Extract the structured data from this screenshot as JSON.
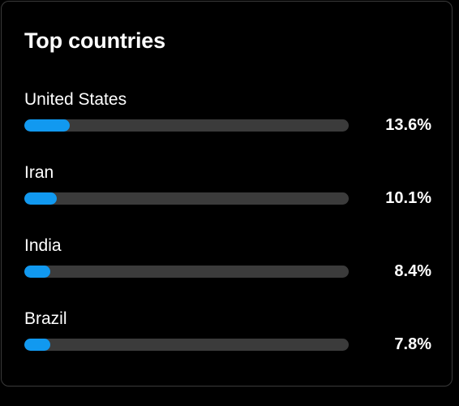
{
  "card": {
    "title": "Top countries"
  },
  "countries": [
    {
      "name": "United States",
      "percent_label": "13.6%",
      "bar_fill_fraction": 0.14
    },
    {
      "name": "Iran",
      "percent_label": "10.1%",
      "bar_fill_fraction": 0.1
    },
    {
      "name": "India",
      "percent_label": "8.4%",
      "bar_fill_fraction": 0.08
    },
    {
      "name": "Brazil",
      "percent_label": "7.8%",
      "bar_fill_fraction": 0.08
    }
  ],
  "colors": {
    "background": "#000000",
    "card_border": "#3a3a3a",
    "track": "#3b3b3b",
    "accent": "#1199f0",
    "text": "#ffffff"
  }
}
